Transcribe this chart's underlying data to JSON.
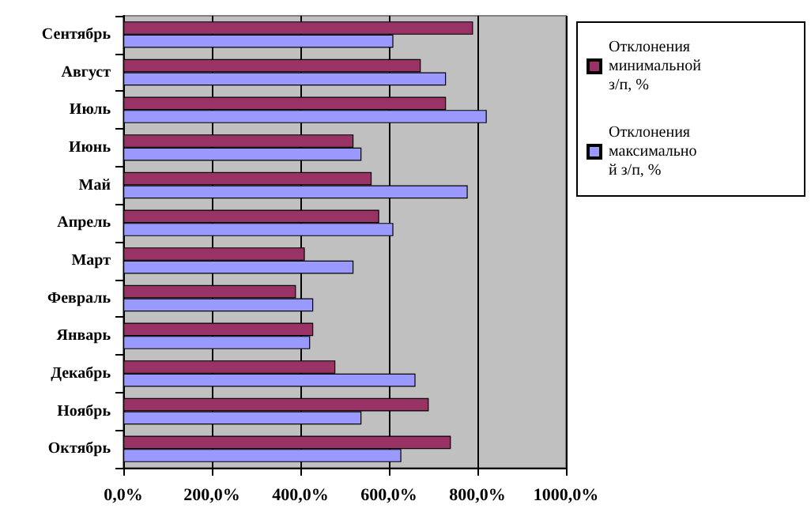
{
  "chart_data": {
    "type": "bar",
    "orientation": "horizontal",
    "categories": [
      "Сентябрь",
      "Август",
      "Июль",
      "Июнь",
      "Май",
      "Апрель",
      "Март",
      "Февраль",
      "Январь",
      "Декабрь",
      "Ноябрь",
      "Октябрь"
    ],
    "series": [
      {
        "name": "Отклонения минимальной з/п, %",
        "color": "#993366",
        "values": [
          790,
          672,
          729,
          520,
          561,
          578,
          410,
          390,
          429,
          479,
          690,
          740
        ]
      },
      {
        "name": "Отклонения максимальной з/п, %",
        "color": "#9999ff",
        "values": [
          610,
          729,
          821,
          538,
          778,
          610,
          520,
          429,
          422,
          660,
          538,
          628
        ]
      }
    ],
    "xlim": [
      0,
      1000
    ],
    "xticks": [
      {
        "value": 0,
        "label": "0,0%"
      },
      {
        "value": 200,
        "label": "200,0%"
      },
      {
        "value": 400,
        "label": "400,0%"
      },
      {
        "value": 600,
        "label": "600,0%"
      },
      {
        "value": 800,
        "label": "800,0%"
      },
      {
        "value": 1000,
        "label": "1000,0%"
      }
    ],
    "grid": "x",
    "legend": "right"
  }
}
